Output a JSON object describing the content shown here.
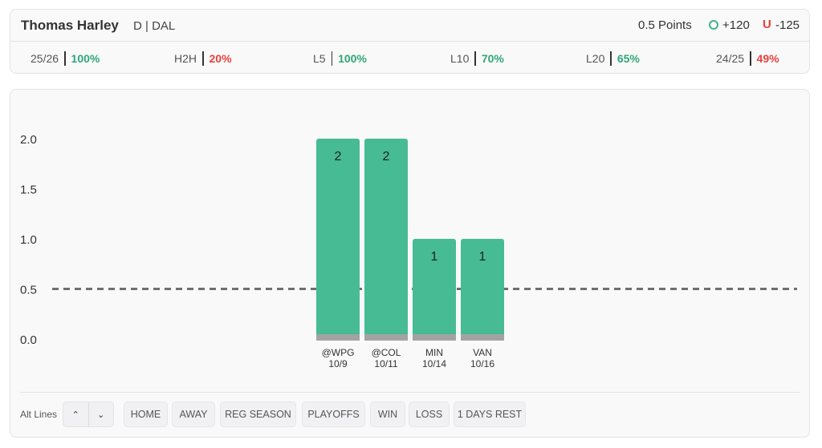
{
  "header": {
    "player_name": "Thomas Harley",
    "player_meta": "D | DAL",
    "line_label": "0.5 Points",
    "over_odds": "+120",
    "under_symbol": "U",
    "under_odds": "-125",
    "colors": {
      "over": "#3fb58c",
      "under": "#e8413c"
    }
  },
  "stats": [
    {
      "label": "25/26",
      "value": "100%",
      "tone": "green"
    },
    {
      "label": "H2H",
      "value": "20%",
      "tone": "red"
    },
    {
      "label": "L5",
      "value": "100%",
      "tone": "green"
    },
    {
      "label": "L10",
      "value": "70%",
      "tone": "green"
    },
    {
      "label": "L20",
      "value": "65%",
      "tone": "green"
    },
    {
      "label": "24/25",
      "value": "49%",
      "tone": "red"
    }
  ],
  "chart_data": {
    "type": "bar",
    "categories": [
      "@WPG",
      "@COL",
      "MIN",
      "VAN"
    ],
    "dates": [
      "10/9",
      "10/11",
      "10/14",
      "10/16"
    ],
    "values": [
      2,
      2,
      1,
      1
    ],
    "data_labels": [
      "2",
      "2",
      "1",
      "1"
    ],
    "y_ticks": [
      "0.0",
      "0.5",
      "1.0",
      "1.5",
      "2.0"
    ],
    "ylim": [
      0,
      2
    ],
    "threshold_line": 0.5,
    "bar_color": "#47bb93",
    "base_color": "#a3a3a5",
    "grid": false
  },
  "filters": {
    "alt_lines_label": "Alt Lines",
    "alt_up_icon": "chevron-up-icon",
    "alt_down_icon": "chevron-down-icon",
    "up_glyph": "⌃",
    "down_glyph": "⌄",
    "chips": [
      "HOME",
      "AWAY",
      "REG SEASON",
      "PLAYOFFS",
      "WIN",
      "LOSS",
      "1 DAYS REST"
    ]
  }
}
